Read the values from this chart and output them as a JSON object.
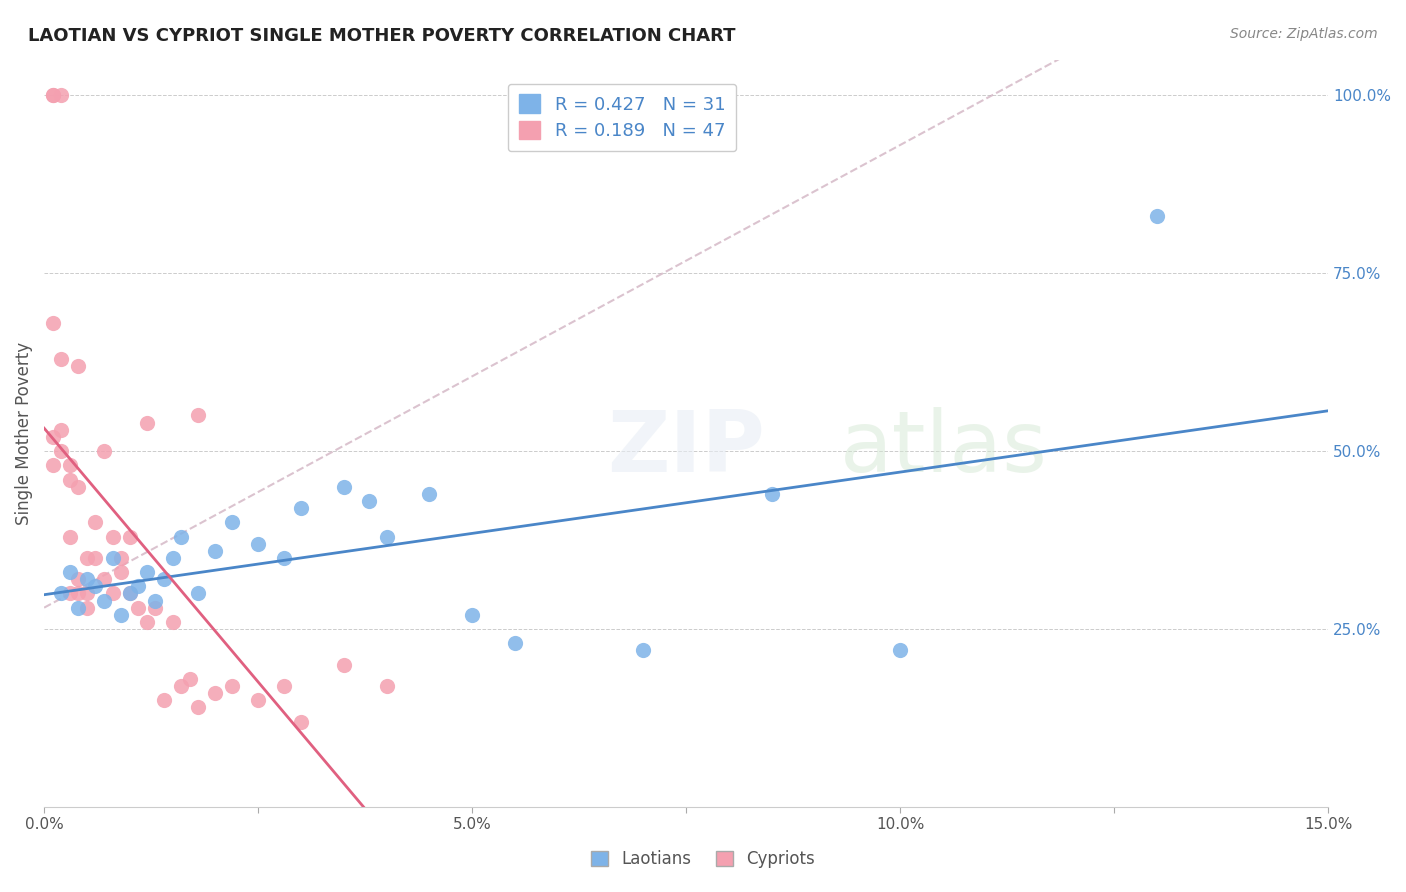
{
  "title": "LAOTIAN VS CYPRIOT SINGLE MOTHER POVERTY CORRELATION CHART",
  "source": "Source: ZipAtlas.com",
  "xlabel_bottom": "",
  "ylabel": "Single Mother Poverty",
  "xlim": [
    0.0,
    0.15
  ],
  "ylim": [
    0.0,
    1.05
  ],
  "xticks": [
    0.0,
    0.025,
    0.05,
    0.075,
    0.1,
    0.125,
    0.15
  ],
  "xticklabels": [
    "0.0%",
    "",
    "5.0%",
    "",
    "10.0%",
    "",
    "15.0%"
  ],
  "yticks_left": [],
  "yticks_right": [
    0.25,
    0.5,
    0.75,
    1.0
  ],
  "yticklabels_right": [
    "25.0%",
    "50.0%",
    "75.0%",
    "100.0%"
  ],
  "grid_color": "#cccccc",
  "background_color": "#ffffff",
  "watermark": "ZIPatlas",
  "legend_blue_r": "0.427",
  "legend_blue_n": "31",
  "legend_pink_r": "0.189",
  "legend_pink_n": "47",
  "blue_color": "#7EB3E8",
  "pink_color": "#F4A0B0",
  "blue_line_color": "#4A86C8",
  "pink_line_color": "#E06080",
  "dashed_line_color": "#CCAABB",
  "laotian_x": [
    0.002,
    0.003,
    0.004,
    0.005,
    0.006,
    0.007,
    0.008,
    0.009,
    0.01,
    0.011,
    0.012,
    0.013,
    0.014,
    0.015,
    0.016,
    0.018,
    0.02,
    0.022,
    0.025,
    0.028,
    0.03,
    0.035,
    0.038,
    0.04,
    0.045,
    0.05,
    0.055,
    0.07,
    0.085,
    0.1,
    0.13
  ],
  "laotian_y": [
    0.3,
    0.33,
    0.28,
    0.32,
    0.31,
    0.29,
    0.35,
    0.27,
    0.3,
    0.31,
    0.33,
    0.29,
    0.32,
    0.35,
    0.38,
    0.3,
    0.36,
    0.4,
    0.37,
    0.35,
    0.42,
    0.45,
    0.43,
    0.38,
    0.44,
    0.27,
    0.23,
    0.22,
    0.44,
    0.22,
    0.83
  ],
  "cypriot_x": [
    0.001,
    0.001,
    0.002,
    0.002,
    0.003,
    0.003,
    0.003,
    0.004,
    0.004,
    0.004,
    0.005,
    0.005,
    0.005,
    0.006,
    0.006,
    0.007,
    0.007,
    0.008,
    0.008,
    0.009,
    0.009,
    0.01,
    0.01,
    0.011,
    0.012,
    0.013,
    0.014,
    0.015,
    0.016,
    0.017,
    0.018,
    0.02,
    0.022,
    0.025,
    0.028,
    0.03,
    0.035,
    0.04,
    0.018,
    0.012,
    0.001,
    0.001,
    0.001,
    0.002,
    0.002,
    0.003,
    0.004
  ],
  "cypriot_y": [
    1.0,
    1.0,
    0.63,
    1.0,
    0.38,
    0.46,
    0.3,
    0.45,
    0.32,
    0.62,
    0.35,
    0.3,
    0.28,
    0.4,
    0.35,
    0.5,
    0.32,
    0.38,
    0.3,
    0.35,
    0.33,
    0.3,
    0.38,
    0.28,
    0.26,
    0.28,
    0.15,
    0.26,
    0.17,
    0.18,
    0.14,
    0.16,
    0.17,
    0.15,
    0.17,
    0.12,
    0.2,
    0.17,
    0.55,
    0.54,
    0.68,
    0.52,
    0.48,
    0.5,
    0.53,
    0.48,
    0.3
  ]
}
